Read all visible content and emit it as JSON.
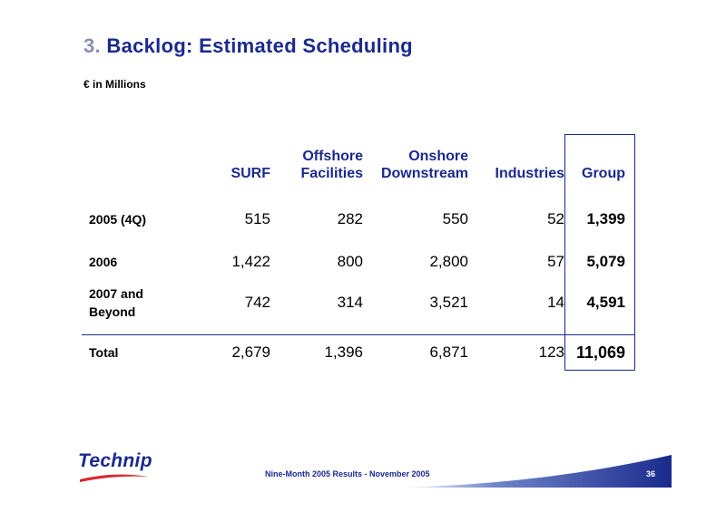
{
  "header": {
    "number": "3.",
    "title": "Backlog: Estimated Scheduling",
    "subtitle": "€ in Millions"
  },
  "table": {
    "columns": [
      {
        "line1": "",
        "line2": "SURF"
      },
      {
        "line1": "Offshore",
        "line2": "Facilities"
      },
      {
        "line1": "Onshore",
        "line2": "Downstream"
      },
      {
        "line1": "",
        "line2": "Industries"
      },
      {
        "line1": "",
        "line2": "Group"
      }
    ],
    "rows": [
      {
        "label_line1": "2005 (4Q)",
        "label_line2": "",
        "values": [
          "515",
          "282",
          "550",
          "52",
          "1,399"
        ]
      },
      {
        "label_line1": "2006",
        "label_line2": "",
        "values": [
          "1,422",
          "800",
          "2,800",
          "57",
          "5,079"
        ]
      },
      {
        "label_line1": "2007 and",
        "label_line2": "Beyond",
        "values": [
          "742",
          "314",
          "3,521",
          "14",
          "4,591"
        ]
      },
      {
        "label_line1": "Total",
        "label_line2": "",
        "values": [
          "2,679",
          "1,396",
          "6,871",
          "123",
          "11,069"
        ]
      }
    ]
  },
  "footer": {
    "logo_text": "Technip",
    "text": "Nine-Month 2005 Results  -  November 2005",
    "page_number": "36"
  },
  "colors": {
    "accent": "#1a2a8c",
    "logo_red": "#d8282f"
  }
}
